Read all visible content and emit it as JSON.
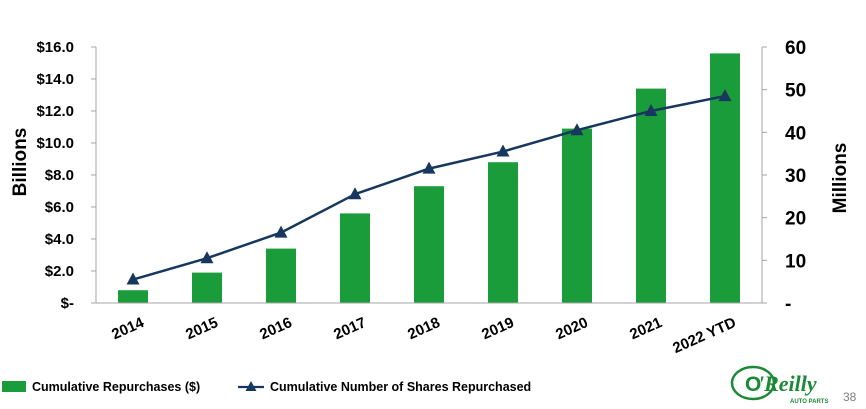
{
  "chart_data": {
    "type": "bar+line",
    "categories": [
      "2014",
      "2015",
      "2016",
      "2017",
      "2018",
      "2019",
      "2020",
      "2021",
      "2022 YTD"
    ],
    "series": [
      {
        "name": "Cumulative Repurchases ($)",
        "kind": "bar",
        "axis": "left",
        "color": "#1a9c3a",
        "values": [
          0.8,
          1.9,
          3.4,
          5.6,
          7.3,
          8.8,
          10.9,
          13.4,
          15.6
        ]
      },
      {
        "name": "Cumulative Number of Shares Repurchased",
        "kind": "line",
        "axis": "right",
        "color": "#17375e",
        "values": [
          5.5,
          10.5,
          16.5,
          25.5,
          31.5,
          35.5,
          40.5,
          45,
          48.5
        ]
      }
    ],
    "left_axis": {
      "label": "Billions",
      "ylim": [
        0,
        16
      ],
      "ticks": [
        0,
        2,
        4,
        6,
        8,
        10,
        12,
        14,
        16
      ],
      "tick_labels": [
        "$-",
        "$2.0",
        "$4.0",
        "$6.0",
        "$8.0",
        "$10.0",
        "$12.0",
        "$14.0",
        "$16.0"
      ]
    },
    "right_axis": {
      "label": "Millions",
      "ylim": [
        0,
        60
      ],
      "ticks": [
        0,
        10,
        20,
        30,
        40,
        50,
        60
      ],
      "tick_labels": [
        "-",
        "10",
        "20",
        "30",
        "40",
        "50",
        "60"
      ]
    },
    "legend": [
      {
        "label": "Cumulative Repurchases ($)",
        "marker": "bar"
      },
      {
        "label": "Cumulative Number of Shares Repurchased",
        "marker": "line-triangle"
      }
    ],
    "legend_position": "bottom-left",
    "grid": false
  },
  "footer": {
    "page_number": "38",
    "logo": {
      "text_o": "O",
      "text_reilly": "'Reilly",
      "subtext": "AUTO PARTS"
    }
  }
}
